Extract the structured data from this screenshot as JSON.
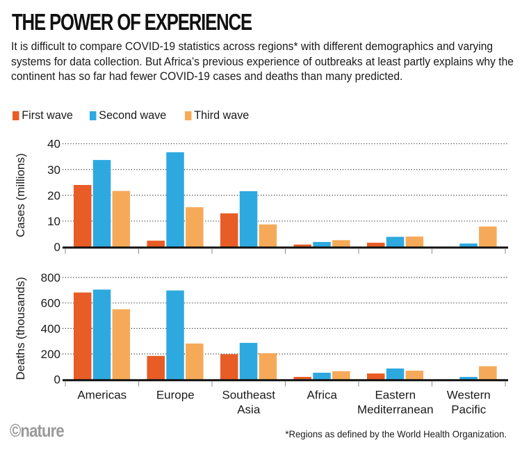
{
  "header": {
    "title": "THE POWER OF EXPERIENCE",
    "subtitle": "It is difficult to compare COVID-19 statistics across regions* with different demographics and varying systems for data collection. But Africa’s previous experience of outbreaks at least partly explains why the continent has so far had fewer COVID-19 cases and deaths than many predicted."
  },
  "legend": [
    {
      "label": "First wave",
      "color": "#E85C26"
    },
    {
      "label": "Second wave",
      "color": "#2EA9E0"
    },
    {
      "label": "Third wave",
      "color": "#F6AA59"
    }
  ],
  "footer": {
    "logo": "©nature",
    "footnote": "*Regions as defined by the World Health Organization."
  },
  "chart_data": [
    {
      "type": "bar",
      "title": "",
      "xlabel": "",
      "ylabel": "Cases (millions)",
      "ylim": [
        0,
        40
      ],
      "yticks": [
        0,
        10,
        20,
        30,
        40
      ],
      "grid": true,
      "legend": "top-left",
      "categories": [
        "Americas",
        "Europe",
        "Southeast Asia",
        "Africa",
        "Eastern Mediterranean",
        "Western Pacific"
      ],
      "series": [
        {
          "name": "First wave",
          "color": "#E85C26",
          "values": [
            24.0,
            2.4,
            13.0,
            0.9,
            1.6,
            0
          ]
        },
        {
          "name": "Second wave",
          "color": "#2EA9E0",
          "values": [
            33.7,
            36.7,
            21.6,
            1.9,
            3.9,
            1.3
          ]
        },
        {
          "name": "Third wave",
          "color": "#F6AA59",
          "values": [
            21.7,
            15.4,
            8.7,
            2.6,
            4.0,
            7.9
          ]
        }
      ]
    },
    {
      "type": "bar",
      "title": "",
      "xlabel": "",
      "ylabel": "Deaths (thousands)",
      "ylim": [
        0,
        800
      ],
      "yticks": [
        0,
        200,
        400,
        600,
        800
      ],
      "grid": true,
      "categories": [
        "Americas",
        "Europe",
        "Southeast Asia",
        "Africa",
        "Eastern Mediterranean",
        "Western Pacific"
      ],
      "category_labels": [
        [
          "Americas"
        ],
        [
          "Europe"
        ],
        [
          "Southeast",
          "Asia"
        ],
        [
          "Africa"
        ],
        [
          "Eastern",
          "Mediterranean"
        ],
        [
          "Western",
          "Pacific"
        ]
      ],
      "series": [
        {
          "name": "First wave",
          "color": "#E85C26",
          "values": [
            682,
            185,
            198,
            20,
            47,
            0
          ]
        },
        {
          "name": "Second wave",
          "color": "#2EA9E0",
          "values": [
            705,
            698,
            287,
            53,
            86,
            20
          ]
        },
        {
          "name": "Third wave",
          "color": "#F6AA59",
          "values": [
            551,
            282,
            206,
            65,
            69,
            104
          ]
        }
      ]
    }
  ]
}
